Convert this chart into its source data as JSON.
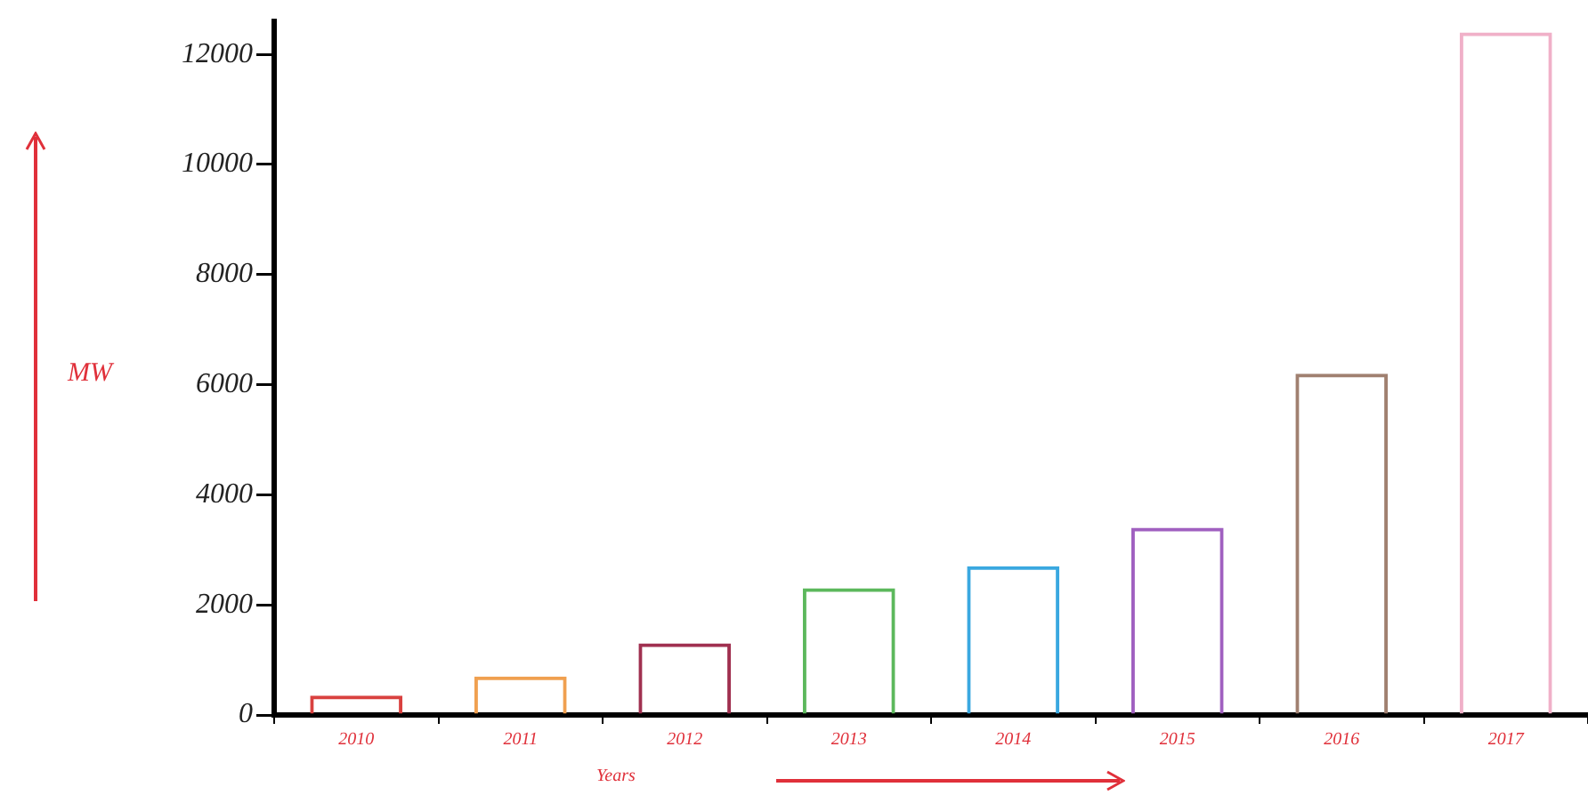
{
  "chart_data": {
    "type": "bar",
    "xlabel": "Years",
    "ylabel": "MW",
    "categories": [
      "2010",
      "2011",
      "2012",
      "2013",
      "2014",
      "2015",
      "2016",
      "2017"
    ],
    "values": [
      350,
      700,
      1300,
      2300,
      2700,
      3400,
      6200,
      12400
    ],
    "colors": [
      "#d9413f",
      "#f0a050",
      "#a03050",
      "#5cb85c",
      "#3aa8e0",
      "#a060c0",
      "#a08070",
      "#f0b0c8"
    ],
    "ylim": [
      0,
      12600
    ],
    "yticks": [
      0,
      2000,
      4000,
      6000,
      8000,
      10000,
      12000
    ],
    "grid": false,
    "legend": false
  }
}
